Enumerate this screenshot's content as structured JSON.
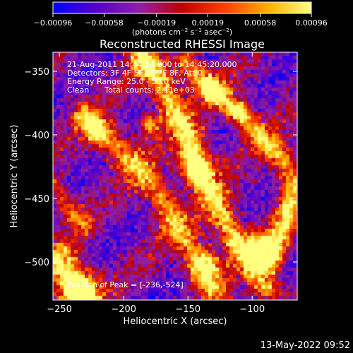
{
  "chart_data": {
    "type": "heatmap",
    "title": "Reconstructed RHESSI Image",
    "xlabel": "Heliocentric X (arcsec)",
    "ylabel": "Heliocentric Y (arcsec)",
    "xlim": [
      -255,
      -65
    ],
    "ylim": [
      -530,
      -335
    ],
    "x_ticks": [
      -250,
      -200,
      -150,
      -100
    ],
    "y_ticks": [
      -350,
      -400,
      -450,
      -500
    ],
    "x_tick_labels": [
      "−250",
      "−200",
      "−150",
      "−100"
    ],
    "y_tick_labels": [
      "−350",
      "−400",
      "−450",
      "−500"
    ],
    "colorbar": {
      "ticks": [
        -0.00096,
        -0.00058,
        -0.00019,
        0.00019,
        0.00058,
        0.00096
      ],
      "tick_labels": [
        "−0.00096",
        "−0.00058",
        "−0.00019",
        "0.00019",
        "0.00058",
        "0.00096"
      ],
      "range": [
        -0.00096,
        0.00096
      ],
      "unit_label": {
        "pre": "(photons cm",
        "sup1": "−2",
        "mid1": " s",
        "sup2": "−1",
        "mid2": " asec",
        "sup3": "−2",
        "post": ")"
      },
      "colors": [
        "#0000ff",
        "#5500c8",
        "#8e1fa8",
        "#c00000",
        "#ff4000",
        "#ffb000",
        "#ffff80"
      ]
    },
    "peak": [
      -236,
      -524
    ],
    "bright_ridges": [
      {
        "points": [
          [
            -230,
            -385
          ],
          [
            -215,
            -400
          ],
          [
            -200,
            -415
          ],
          [
            -185,
            -430
          ],
          [
            -170,
            -450
          ],
          [
            -160,
            -470
          ],
          [
            -150,
            -485
          ],
          [
            -140,
            -505
          ],
          [
            -130,
            -520
          ]
        ],
        "width": 14,
        "intensity": 0.75
      },
      {
        "points": [
          [
            -185,
            -340
          ],
          [
            -170,
            -360
          ],
          [
            -160,
            -385
          ],
          [
            -150,
            -400
          ],
          [
            -145,
            -420
          ],
          [
            -135,
            -440
          ],
          [
            -125,
            -460
          ],
          [
            -115,
            -480
          ],
          [
            -100,
            -500
          ],
          [
            -90,
            -520
          ]
        ],
        "width": 14,
        "intensity": 0.95
      },
      {
        "points": [
          [
            -150,
            -345
          ],
          [
            -135,
            -360
          ],
          [
            -120,
            -375
          ],
          [
            -105,
            -390
          ],
          [
            -90,
            -405
          ],
          [
            -75,
            -420
          ],
          [
            -68,
            -440
          ],
          [
            -75,
            -470
          ],
          [
            -85,
            -500
          ]
        ],
        "width": 12,
        "intensity": 0.8
      },
      {
        "points": [
          [
            -250,
            -500
          ],
          [
            -240,
            -515
          ],
          [
            -230,
            -528
          ]
        ],
        "width": 18,
        "intensity": 0.9
      },
      {
        "points": [
          [
            -255,
            -440
          ],
          [
            -245,
            -455
          ],
          [
            -230,
            -470
          ]
        ],
        "width": 10,
        "intensity": 0.55
      }
    ],
    "bright_spots": [
      {
        "x": -143,
        "y": -425,
        "r": 9,
        "intensity": 1.0
      },
      {
        "x": -93,
        "y": -490,
        "r": 8,
        "intensity": 1.0
      },
      {
        "x": -235,
        "y": -523,
        "r": 10,
        "intensity": 1.0
      },
      {
        "x": -136,
        "y": -502,
        "r": 7,
        "intensity": 0.95
      },
      {
        "x": -132,
        "y": -364,
        "r": 6,
        "intensity": 0.9
      },
      {
        "x": -222,
        "y": -398,
        "r": 6,
        "intensity": 0.85
      },
      {
        "x": -180,
        "y": -393,
        "r": 6,
        "intensity": 0.9
      },
      {
        "x": -110,
        "y": -380,
        "r": 5,
        "intensity": 0.85
      }
    ]
  },
  "annotations": {
    "time_range": "21-Aug-2011 14:44:24.000 to 14:45:20.000",
    "detectors": "Detectors: 3F 4F 5F 6F 7F 8F, Att 0",
    "energy_range": "Energy Range: 25.0 - 50.0 keV",
    "clean_label": "Clean",
    "total_counts": "Total counts: 2.11e+03",
    "peak_position": "Position of Peak = [-236,-524]"
  },
  "footer": {
    "date": "13-May-2022 09:52"
  }
}
